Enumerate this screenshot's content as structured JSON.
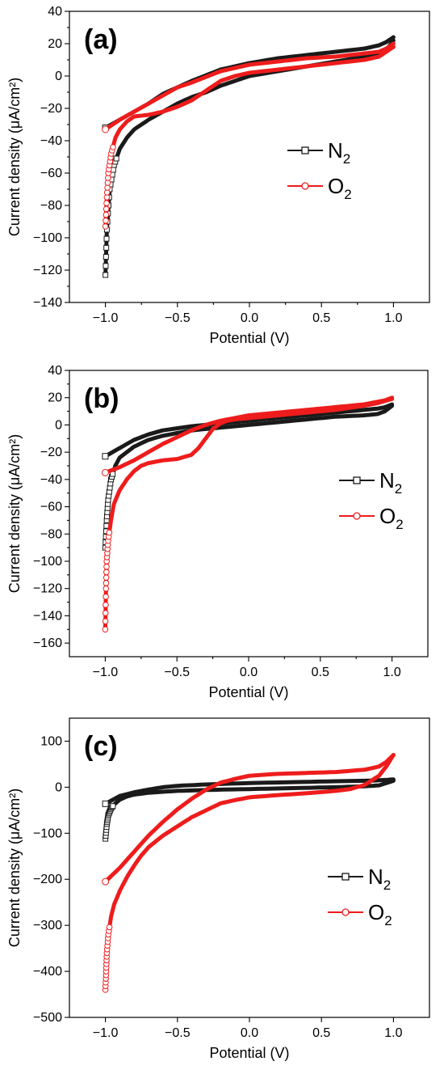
{
  "colors": {
    "N2": "#1a1a1a",
    "O2": "#ee1c1c"
  },
  "chart_data": [
    {
      "type": "line",
      "panel_label": "(a)",
      "xlabel": "Potential (V)",
      "ylabel": "Current density (μA/cm²)",
      "xlim": [
        -1.25,
        1.25
      ],
      "ylim": [
        -140,
        40
      ],
      "xticks": [
        -1.0,
        -0.5,
        0.0,
        0.5,
        1.0
      ],
      "xtick_labels": [
        "−1.0",
        "−0.5",
        "0.0",
        "0.5",
        "1.0"
      ],
      "yticks": [
        -140,
        -120,
        -100,
        -80,
        -60,
        -40,
        -20,
        0,
        20,
        40
      ],
      "ytick_labels": [
        "−140",
        "−120",
        "−100",
        "−80",
        "−60",
        "−40",
        "−20",
        "0",
        "20",
        "40"
      ],
      "legend_position": "right",
      "series": [
        {
          "name": "N",
          "sub": "2",
          "marker": "square",
          "forward": [
            [
              -1.0,
              -123
            ],
            [
              -0.99,
              -95
            ],
            [
              -0.97,
              -70
            ],
            [
              -0.94,
              -55
            ],
            [
              -0.9,
              -45
            ],
            [
              -0.85,
              -38
            ],
            [
              -0.8,
              -33
            ],
            [
              -0.7,
              -27
            ],
            [
              -0.6,
              -22
            ],
            [
              -0.5,
              -17
            ],
            [
              -0.4,
              -13
            ],
            [
              -0.3,
              -10
            ],
            [
              -0.2,
              -6
            ],
            [
              -0.1,
              -3
            ],
            [
              0.0,
              0
            ],
            [
              0.2,
              3
            ],
            [
              0.4,
              6
            ],
            [
              0.6,
              9
            ],
            [
              0.8,
              12
            ],
            [
              0.9,
              14
            ],
            [
              0.95,
              16
            ],
            [
              1.0,
              22
            ]
          ],
          "reverse": [
            [
              1.0,
              24
            ],
            [
              0.95,
              21
            ],
            [
              0.9,
              19
            ],
            [
              0.8,
              17
            ],
            [
              0.6,
              15
            ],
            [
              0.4,
              13
            ],
            [
              0.2,
              11
            ],
            [
              0.0,
              8
            ],
            [
              -0.2,
              4
            ],
            [
              -0.4,
              -3
            ],
            [
              -0.5,
              -7
            ],
            [
              -0.6,
              -11
            ],
            [
              -0.7,
              -17
            ],
            [
              -0.8,
              -22
            ],
            [
              -0.9,
              -27
            ],
            [
              -1.0,
              -32
            ]
          ]
        },
        {
          "name": "O",
          "sub": "2",
          "marker": "circle",
          "forward": [
            [
              -1.0,
              -93
            ],
            [
              -0.99,
              -75
            ],
            [
              -0.98,
              -60
            ],
            [
              -0.96,
              -48
            ],
            [
              -0.93,
              -38
            ],
            [
              -0.9,
              -33
            ],
            [
              -0.85,
              -28
            ],
            [
              -0.8,
              -25
            ],
            [
              -0.7,
              -24
            ],
            [
              -0.6,
              -22
            ],
            [
              -0.5,
              -19
            ],
            [
              -0.4,
              -15
            ],
            [
              -0.3,
              -9
            ],
            [
              -0.2,
              -3
            ],
            [
              -0.1,
              0
            ],
            [
              0.0,
              2
            ],
            [
              0.2,
              4
            ],
            [
              0.4,
              6
            ],
            [
              0.6,
              8
            ],
            [
              0.8,
              10
            ],
            [
              0.9,
              12
            ],
            [
              0.95,
              15
            ],
            [
              1.0,
              18
            ]
          ],
          "reverse": [
            [
              1.0,
              20
            ],
            [
              0.95,
              17
            ],
            [
              0.9,
              15
            ],
            [
              0.8,
              14
            ],
            [
              0.6,
              12
            ],
            [
              0.4,
              11
            ],
            [
              0.2,
              9
            ],
            [
              0.0,
              7
            ],
            [
              -0.2,
              3
            ],
            [
              -0.4,
              -4
            ],
            [
              -0.5,
              -7
            ],
            [
              -0.6,
              -12
            ],
            [
              -0.7,
              -17
            ],
            [
              -0.8,
              -22
            ],
            [
              -0.9,
              -27
            ],
            [
              -1.0,
              -33
            ]
          ]
        }
      ]
    },
    {
      "type": "line",
      "panel_label": "(b)",
      "xlabel": "Potential (V)",
      "ylabel": "Current density (μA/cm²)",
      "xlim": [
        -1.25,
        1.25
      ],
      "ylim": [
        -170,
        40
      ],
      "xticks": [
        -1.0,
        -0.5,
        0.0,
        0.5,
        1.0
      ],
      "xtick_labels": [
        "−1.0",
        "−0.5",
        "0.0",
        "0.5",
        "1.0"
      ],
      "yticks": [
        -160,
        -140,
        -120,
        -100,
        -80,
        -60,
        -40,
        -20,
        0,
        20,
        40
      ],
      "ytick_labels": [
        "−160",
        "−140",
        "−120",
        "−100",
        "−80",
        "−60",
        "−40",
        "−20",
        "0",
        "20",
        "40"
      ],
      "legend_position": "right",
      "series": [
        {
          "name": "N",
          "sub": "2",
          "marker": "square",
          "forward": [
            [
              -1.0,
              -90
            ],
            [
              -0.99,
              -70
            ],
            [
              -0.98,
              -55
            ],
            [
              -0.96,
              -40
            ],
            [
              -0.93,
              -30
            ],
            [
              -0.9,
              -24
            ],
            [
              -0.85,
              -20
            ],
            [
              -0.8,
              -16
            ],
            [
              -0.7,
              -11
            ],
            [
              -0.6,
              -8
            ],
            [
              -0.5,
              -6
            ],
            [
              -0.4,
              -4
            ],
            [
              -0.2,
              -2
            ],
            [
              0.0,
              0
            ],
            [
              0.2,
              2
            ],
            [
              0.4,
              4
            ],
            [
              0.6,
              6
            ],
            [
              0.8,
              7
            ],
            [
              0.9,
              8
            ],
            [
              0.95,
              10
            ],
            [
              1.0,
              14
            ]
          ],
          "reverse": [
            [
              1.0,
              15
            ],
            [
              0.95,
              13
            ],
            [
              0.9,
              12
            ],
            [
              0.8,
              11
            ],
            [
              0.6,
              9
            ],
            [
              0.4,
              7
            ],
            [
              0.2,
              5
            ],
            [
              0.0,
              3
            ],
            [
              -0.2,
              1
            ],
            [
              -0.4,
              -1
            ],
            [
              -0.6,
              -4
            ],
            [
              -0.7,
              -7
            ],
            [
              -0.8,
              -11
            ],
            [
              -0.9,
              -17
            ],
            [
              -1.0,
              -23
            ]
          ]
        },
        {
          "name": "O",
          "sub": "2",
          "marker": "circle",
          "forward": [
            [
              -1.0,
              -150
            ],
            [
              -0.995,
              -120
            ],
            [
              -0.99,
              -100
            ],
            [
              -0.98,
              -85
            ],
            [
              -0.96,
              -70
            ],
            [
              -0.94,
              -58
            ],
            [
              -0.9,
              -48
            ],
            [
              -0.85,
              -40
            ],
            [
              -0.8,
              -34
            ],
            [
              -0.75,
              -30
            ],
            [
              -0.7,
              -28
            ],
            [
              -0.6,
              -26
            ],
            [
              -0.5,
              -25
            ],
            [
              -0.4,
              -22
            ],
            [
              -0.35,
              -17
            ],
            [
              -0.3,
              -10
            ],
            [
              -0.25,
              -3
            ],
            [
              -0.2,
              1
            ],
            [
              -0.15,
              3
            ],
            [
              -0.1,
              4
            ],
            [
              0.0,
              5
            ],
            [
              0.2,
              7
            ],
            [
              0.4,
              9
            ],
            [
              0.6,
              11
            ],
            [
              0.8,
              14
            ],
            [
              0.9,
              16
            ],
            [
              1.0,
              19
            ]
          ],
          "reverse": [
            [
              1.0,
              20
            ],
            [
              0.95,
              18
            ],
            [
              0.9,
              17
            ],
            [
              0.8,
              15
            ],
            [
              0.6,
              13
            ],
            [
              0.4,
              11
            ],
            [
              0.2,
              9
            ],
            [
              0.0,
              7
            ],
            [
              -0.2,
              3
            ],
            [
              -0.3,
              0
            ],
            [
              -0.4,
              -4
            ],
            [
              -0.5,
              -9
            ],
            [
              -0.6,
              -14
            ],
            [
              -0.7,
              -20
            ],
            [
              -0.8,
              -26
            ],
            [
              -0.9,
              -31
            ],
            [
              -1.0,
              -35
            ]
          ]
        }
      ]
    },
    {
      "type": "line",
      "panel_label": "(c)",
      "xlabel": "Potential (V)",
      "ylabel": "Current density (μA/cm²)",
      "xlim": [
        -1.25,
        1.25
      ],
      "ylim": [
        -500,
        150
      ],
      "xticks": [
        -1.0,
        -0.5,
        0.0,
        0.5,
        1.0
      ],
      "xtick_labels": [
        "−1.0",
        "−0.5",
        "0.0",
        "0.5",
        "1.0"
      ],
      "yticks": [
        -500,
        -400,
        -300,
        -200,
        -100,
        0,
        100
      ],
      "ytick_labels": [
        "−500",
        "−400",
        "−300",
        "−200",
        "−100",
        "0",
        "100"
      ],
      "legend_position": "right",
      "series": [
        {
          "name": "N",
          "sub": "2",
          "marker": "square",
          "forward": [
            [
              -1.0,
              -112
            ],
            [
              -0.99,
              -80
            ],
            [
              -0.98,
              -60
            ],
            [
              -0.96,
              -45
            ],
            [
              -0.93,
              -35
            ],
            [
              -0.9,
              -27
            ],
            [
              -0.85,
              -20
            ],
            [
              -0.8,
              -16
            ],
            [
              -0.7,
              -12
            ],
            [
              -0.5,
              -8
            ],
            [
              -0.3,
              -6
            ],
            [
              0.0,
              -4
            ],
            [
              0.3,
              -2
            ],
            [
              0.6,
              0
            ],
            [
              0.8,
              2
            ],
            [
              0.9,
              4
            ],
            [
              1.0,
              14
            ]
          ],
          "reverse": [
            [
              1.0,
              17
            ],
            [
              0.9,
              15
            ],
            [
              0.8,
              14
            ],
            [
              0.6,
              13
            ],
            [
              0.3,
              11
            ],
            [
              0.0,
              9
            ],
            [
              -0.3,
              6
            ],
            [
              -0.5,
              3
            ],
            [
              -0.6,
              0
            ],
            [
              -0.7,
              -5
            ],
            [
              -0.8,
              -11
            ],
            [
              -0.9,
              -19
            ],
            [
              -1.0,
              -36
            ]
          ]
        },
        {
          "name": "O",
          "sub": "2",
          "marker": "circle",
          "forward": [
            [
              -1.0,
              -440
            ],
            [
              -0.995,
              -400
            ],
            [
              -0.99,
              -360
            ],
            [
              -0.98,
              -320
            ],
            [
              -0.96,
              -280
            ],
            [
              -0.94,
              -255
            ],
            [
              -0.9,
              -225
            ],
            [
              -0.85,
              -195
            ],
            [
              -0.8,
              -170
            ],
            [
              -0.75,
              -148
            ],
            [
              -0.7,
              -130
            ],
            [
              -0.6,
              -105
            ],
            [
              -0.5,
              -85
            ],
            [
              -0.4,
              -65
            ],
            [
              -0.3,
              -50
            ],
            [
              -0.2,
              -35
            ],
            [
              -0.1,
              -28
            ],
            [
              0.0,
              -22
            ],
            [
              0.2,
              -17
            ],
            [
              0.4,
              -13
            ],
            [
              0.6,
              -8
            ],
            [
              0.7,
              -4
            ],
            [
              0.8,
              5
            ],
            [
              0.9,
              25
            ],
            [
              0.95,
              45
            ],
            [
              1.0,
              70
            ]
          ],
          "reverse": [
            [
              1.0,
              70
            ],
            [
              0.95,
              55
            ],
            [
              0.9,
              45
            ],
            [
              0.8,
              38
            ],
            [
              0.6,
              33
            ],
            [
              0.4,
              31
            ],
            [
              0.2,
              29
            ],
            [
              0.0,
              25
            ],
            [
              -0.1,
              18
            ],
            [
              -0.2,
              10
            ],
            [
              -0.3,
              -5
            ],
            [
              -0.4,
              -25
            ],
            [
              -0.5,
              -48
            ],
            [
              -0.6,
              -75
            ],
            [
              -0.7,
              -105
            ],
            [
              -0.8,
              -140
            ],
            [
              -0.9,
              -175
            ],
            [
              -1.0,
              -205
            ]
          ]
        }
      ]
    }
  ]
}
